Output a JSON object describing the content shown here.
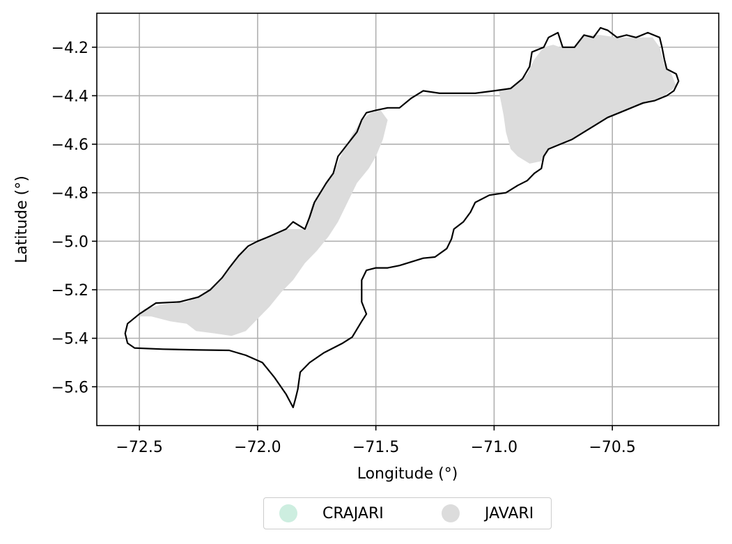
{
  "chart_data": {
    "type": "map",
    "xlabel": "Longitude (°)",
    "ylabel": "Latitude (°)",
    "xlim": [
      -72.68,
      -70.05
    ],
    "ylim": [
      -5.76,
      -4.06
    ],
    "xticks": [
      -72.5,
      -72.0,
      -71.5,
      -71.0,
      -70.5
    ],
    "xtick_labels": [
      "−72.5",
      "−72.0",
      "−71.5",
      "−71.0",
      "−70.5"
    ],
    "yticks": [
      -4.2,
      -4.4,
      -4.6,
      -4.8,
      -5.0,
      -5.2,
      -5.4,
      -5.6
    ],
    "ytick_labels": [
      "−4.2",
      "−4.4",
      "−4.6",
      "−4.8",
      "−5.0",
      "−5.2",
      "−5.4",
      "−5.6"
    ],
    "grid": true,
    "legend_position": "bottom-center",
    "legend": [
      {
        "label": "CRAJARI",
        "color": "#cdeee0"
      },
      {
        "label": "JAVARI",
        "color": "#dcdcdc"
      }
    ],
    "boundary_color": "#000000",
    "javari_fill_color": "#dcdcdc",
    "boundary_outline": [
      [
        -72.56,
        -5.38
      ],
      [
        -72.55,
        -5.42
      ],
      [
        -72.52,
        -5.44
      ],
      [
        -72.4,
        -5.445
      ],
      [
        -72.25,
        -5.448
      ],
      [
        -72.12,
        -5.45
      ],
      [
        -72.05,
        -5.47
      ],
      [
        -71.98,
        -5.5
      ],
      [
        -71.93,
        -5.56
      ],
      [
        -71.88,
        -5.63
      ],
      [
        -71.85,
        -5.685
      ],
      [
        -71.84,
        -5.65
      ],
      [
        -71.83,
        -5.61
      ],
      [
        -71.82,
        -5.54
      ],
      [
        -71.78,
        -5.5
      ],
      [
        -71.72,
        -5.46
      ],
      [
        -71.64,
        -5.42
      ],
      [
        -71.6,
        -5.395
      ],
      [
        -71.56,
        -5.33
      ],
      [
        -71.54,
        -5.3
      ],
      [
        -71.56,
        -5.25
      ],
      [
        -71.56,
        -5.22
      ],
      [
        -71.56,
        -5.16
      ],
      [
        -71.54,
        -5.12
      ],
      [
        -71.5,
        -5.11
      ],
      [
        -71.45,
        -5.11
      ],
      [
        -71.4,
        -5.1
      ],
      [
        -71.35,
        -5.085
      ],
      [
        -71.3,
        -5.07
      ],
      [
        -71.25,
        -5.065
      ],
      [
        -71.2,
        -5.03
      ],
      [
        -71.18,
        -4.99
      ],
      [
        -71.17,
        -4.95
      ],
      [
        -71.13,
        -4.92
      ],
      [
        -71.1,
        -4.88
      ],
      [
        -71.08,
        -4.84
      ],
      [
        -71.02,
        -4.81
      ],
      [
        -70.95,
        -4.8
      ],
      [
        -70.9,
        -4.77
      ],
      [
        -70.86,
        -4.75
      ],
      [
        -70.83,
        -4.72
      ],
      [
        -70.8,
        -4.7
      ],
      [
        -70.79,
        -4.65
      ],
      [
        -70.77,
        -4.62
      ],
      [
        -70.72,
        -4.6
      ],
      [
        -70.67,
        -4.58
      ],
      [
        -70.62,
        -4.55
      ],
      [
        -70.57,
        -4.52
      ],
      [
        -70.52,
        -4.49
      ],
      [
        -70.47,
        -4.47
      ],
      [
        -70.42,
        -4.45
      ],
      [
        -70.37,
        -4.43
      ],
      [
        -70.32,
        -4.42
      ],
      [
        -70.27,
        -4.4
      ],
      [
        -70.24,
        -4.38
      ],
      [
        -70.22,
        -4.34
      ],
      [
        -70.23,
        -4.31
      ],
      [
        -70.27,
        -4.29
      ],
      [
        -70.28,
        -4.25
      ],
      [
        -70.29,
        -4.2
      ],
      [
        -70.3,
        -4.16
      ],
      [
        -70.35,
        -4.14
      ],
      [
        -70.4,
        -4.16
      ],
      [
        -70.44,
        -4.15
      ],
      [
        -70.48,
        -4.16
      ],
      [
        -70.52,
        -4.13
      ],
      [
        -70.55,
        -4.12
      ],
      [
        -70.58,
        -4.16
      ],
      [
        -70.62,
        -4.15
      ],
      [
        -70.66,
        -4.2
      ],
      [
        -70.71,
        -4.2
      ],
      [
        -70.73,
        -4.14
      ],
      [
        -70.77,
        -4.16
      ],
      [
        -70.79,
        -4.2
      ],
      [
        -70.84,
        -4.22
      ],
      [
        -70.85,
        -4.28
      ],
      [
        -70.88,
        -4.33
      ],
      [
        -70.93,
        -4.37
      ],
      [
        -71.0,
        -4.38
      ],
      [
        -71.08,
        -4.39
      ],
      [
        -71.15,
        -4.39
      ],
      [
        -71.23,
        -4.39
      ],
      [
        -71.3,
        -4.38
      ],
      [
        -71.35,
        -4.41
      ],
      [
        -71.4,
        -4.45
      ],
      [
        -71.45,
        -4.45
      ],
      [
        -71.5,
        -4.46
      ],
      [
        -71.54,
        -4.47
      ],
      [
        -71.56,
        -4.5
      ],
      [
        -71.58,
        -4.55
      ],
      [
        -71.62,
        -4.6
      ],
      [
        -71.66,
        -4.65
      ],
      [
        -71.68,
        -4.72
      ],
      [
        -71.71,
        -4.76
      ],
      [
        -71.76,
        -4.84
      ],
      [
        -71.78,
        -4.9
      ],
      [
        -71.8,
        -4.95
      ],
      [
        -71.85,
        -4.92
      ],
      [
        -71.88,
        -4.95
      ],
      [
        -71.95,
        -4.98
      ],
      [
        -72.0,
        -5.0
      ],
      [
        -72.04,
        -5.02
      ],
      [
        -72.08,
        -5.06
      ],
      [
        -72.12,
        -5.11
      ],
      [
        -72.15,
        -5.15
      ],
      [
        -72.2,
        -5.2
      ],
      [
        -72.25,
        -5.23
      ],
      [
        -72.33,
        -5.25
      ],
      [
        -72.43,
        -5.255
      ],
      [
        -72.5,
        -5.3
      ],
      [
        -72.55,
        -5.34
      ],
      [
        -72.56,
        -5.38
      ]
    ],
    "javari_fill_southwest": [
      [
        -72.5,
        -5.31
      ],
      [
        -72.45,
        -5.31
      ],
      [
        -72.37,
        -5.33
      ],
      [
        -72.3,
        -5.34
      ],
      [
        -72.26,
        -5.37
      ],
      [
        -72.18,
        -5.38
      ],
      [
        -72.11,
        -5.39
      ],
      [
        -72.05,
        -5.37
      ],
      [
        -72.0,
        -5.32
      ],
      [
        -71.95,
        -5.27
      ],
      [
        -71.9,
        -5.21
      ],
      [
        -71.85,
        -5.16
      ],
      [
        -71.8,
        -5.09
      ],
      [
        -71.75,
        -5.04
      ],
      [
        -71.7,
        -4.98
      ],
      [
        -71.66,
        -4.92
      ],
      [
        -71.62,
        -4.84
      ],
      [
        -71.58,
        -4.76
      ],
      [
        -71.53,
        -4.7
      ],
      [
        -71.5,
        -4.65
      ],
      [
        -71.47,
        -4.58
      ],
      [
        -71.45,
        -4.5
      ],
      [
        -71.48,
        -4.46
      ],
      [
        -71.52,
        -4.47
      ],
      [
        -71.56,
        -4.5
      ],
      [
        -71.6,
        -4.56
      ],
      [
        -71.64,
        -4.63
      ],
      [
        -71.68,
        -4.72
      ],
      [
        -71.72,
        -4.78
      ],
      [
        -71.77,
        -4.85
      ],
      [
        -71.8,
        -4.95
      ],
      [
        -71.88,
        -4.95
      ],
      [
        -71.95,
        -4.98
      ],
      [
        -72.03,
        -5.02
      ],
      [
        -72.1,
        -5.08
      ],
      [
        -72.15,
        -5.15
      ],
      [
        -72.22,
        -5.21
      ],
      [
        -72.3,
        -5.25
      ],
      [
        -72.4,
        -5.26
      ],
      [
        -72.48,
        -5.28
      ],
      [
        -72.5,
        -5.31
      ]
    ],
    "javari_fill_northeast": [
      [
        -70.98,
        -4.38
      ],
      [
        -70.96,
        -4.48
      ],
      [
        -70.95,
        -4.55
      ],
      [
        -70.93,
        -4.62
      ],
      [
        -70.9,
        -4.65
      ],
      [
        -70.85,
        -4.68
      ],
      [
        -70.8,
        -4.67
      ],
      [
        -70.77,
        -4.62
      ],
      [
        -70.72,
        -4.6
      ],
      [
        -70.65,
        -4.57
      ],
      [
        -70.58,
        -4.53
      ],
      [
        -70.5,
        -4.48
      ],
      [
        -70.42,
        -4.45
      ],
      [
        -70.35,
        -4.43
      ],
      [
        -70.28,
        -4.4
      ],
      [
        -70.23,
        -4.36
      ],
      [
        -70.25,
        -4.31
      ],
      [
        -70.28,
        -4.27
      ],
      [
        -70.3,
        -4.2
      ],
      [
        -70.33,
        -4.16
      ],
      [
        -70.4,
        -4.16
      ],
      [
        -70.48,
        -4.16
      ],
      [
        -70.55,
        -4.15
      ],
      [
        -70.62,
        -4.15
      ],
      [
        -70.66,
        -4.2
      ],
      [
        -70.72,
        -4.2
      ],
      [
        -70.75,
        -4.19
      ],
      [
        -70.79,
        -4.2
      ],
      [
        -70.83,
        -4.25
      ],
      [
        -70.86,
        -4.31
      ],
      [
        -70.9,
        -4.35
      ],
      [
        -70.94,
        -4.37
      ],
      [
        -70.98,
        -4.38
      ]
    ]
  }
}
